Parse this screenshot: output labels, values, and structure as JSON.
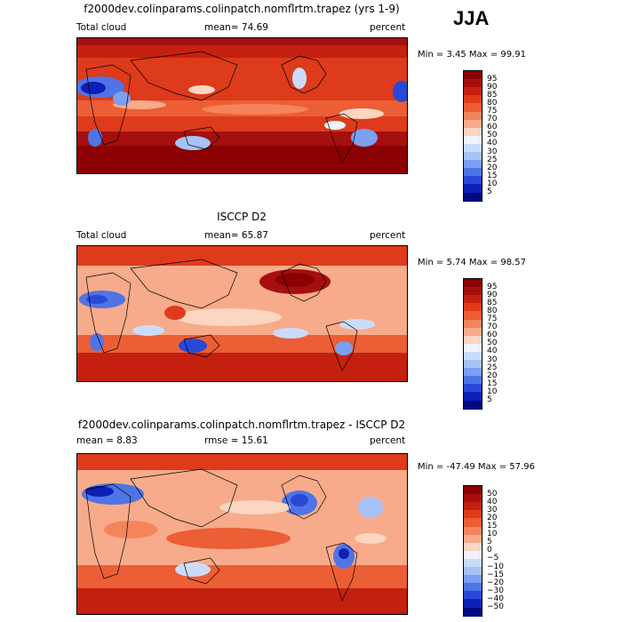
{
  "season": "JJA",
  "panels": [
    {
      "title": "f2000dev.colinparams.colinpatch.nomflrtm.trapez (yrs 1-9)",
      "left_label": "Total cloud",
      "mean_text": "mean=  74.69",
      "units": "percent",
      "minmax": "Min =   3.45 Max =  99.91",
      "levels": [
        "95",
        "90",
        "85",
        "80",
        "75",
        "70",
        "60",
        "50",
        "40",
        "30",
        "25",
        "20",
        "15",
        "10",
        "5"
      ],
      "colors": [
        "#8b0000",
        "#a50f0f",
        "#c4200f",
        "#dd3b1b",
        "#ec5e35",
        "#f4845b",
        "#f8ab8a",
        "#fbd6c1",
        "#eef3ff",
        "#cbdcfb",
        "#a6c2f7",
        "#7c9ff0",
        "#4f74e6",
        "#2a48d6",
        "#0d1fb5",
        "#000a80"
      ]
    },
    {
      "title": "ISCCP D2",
      "left_label": "Total cloud",
      "mean_text": "mean=  65.87",
      "units": "percent",
      "minmax": "Min =   5.74 Max =  98.57",
      "levels": [
        "95",
        "90",
        "85",
        "80",
        "75",
        "70",
        "60",
        "50",
        "40",
        "30",
        "25",
        "20",
        "15",
        "10",
        "5"
      ],
      "colors": [
        "#8b0000",
        "#a50f0f",
        "#c4200f",
        "#dd3b1b",
        "#ec5e35",
        "#f4845b",
        "#f8ab8a",
        "#fbd6c1",
        "#eef3ff",
        "#cbdcfb",
        "#a6c2f7",
        "#7c9ff0",
        "#4f74e6",
        "#2a48d6",
        "#0d1fb5",
        "#000a80"
      ]
    },
    {
      "title": "f2000dev.colinparams.colinpatch.nomflrtm.trapez - ISCCP D2",
      "mean_text": "mean =   8.83",
      "rmse_text": "rmse =   15.61",
      "units": "percent",
      "minmax": "Min = -47.49 Max =  57.96",
      "levels": [
        "50",
        "40",
        "30",
        "20",
        "15",
        "10",
        "5",
        "0",
        "−5",
        "−10",
        "−15",
        "−20",
        "−30",
        "−40",
        "−50"
      ],
      "colors": [
        "#8b0000",
        "#a50f0f",
        "#c4200f",
        "#dd3b1b",
        "#ec5e35",
        "#f4845b",
        "#f8ab8a",
        "#fbd6c1",
        "#eef3ff",
        "#cbdcfb",
        "#a6c2f7",
        "#7c9ff0",
        "#4f74e6",
        "#2a48d6",
        "#0d1fb5",
        "#000a80"
      ]
    }
  ]
}
